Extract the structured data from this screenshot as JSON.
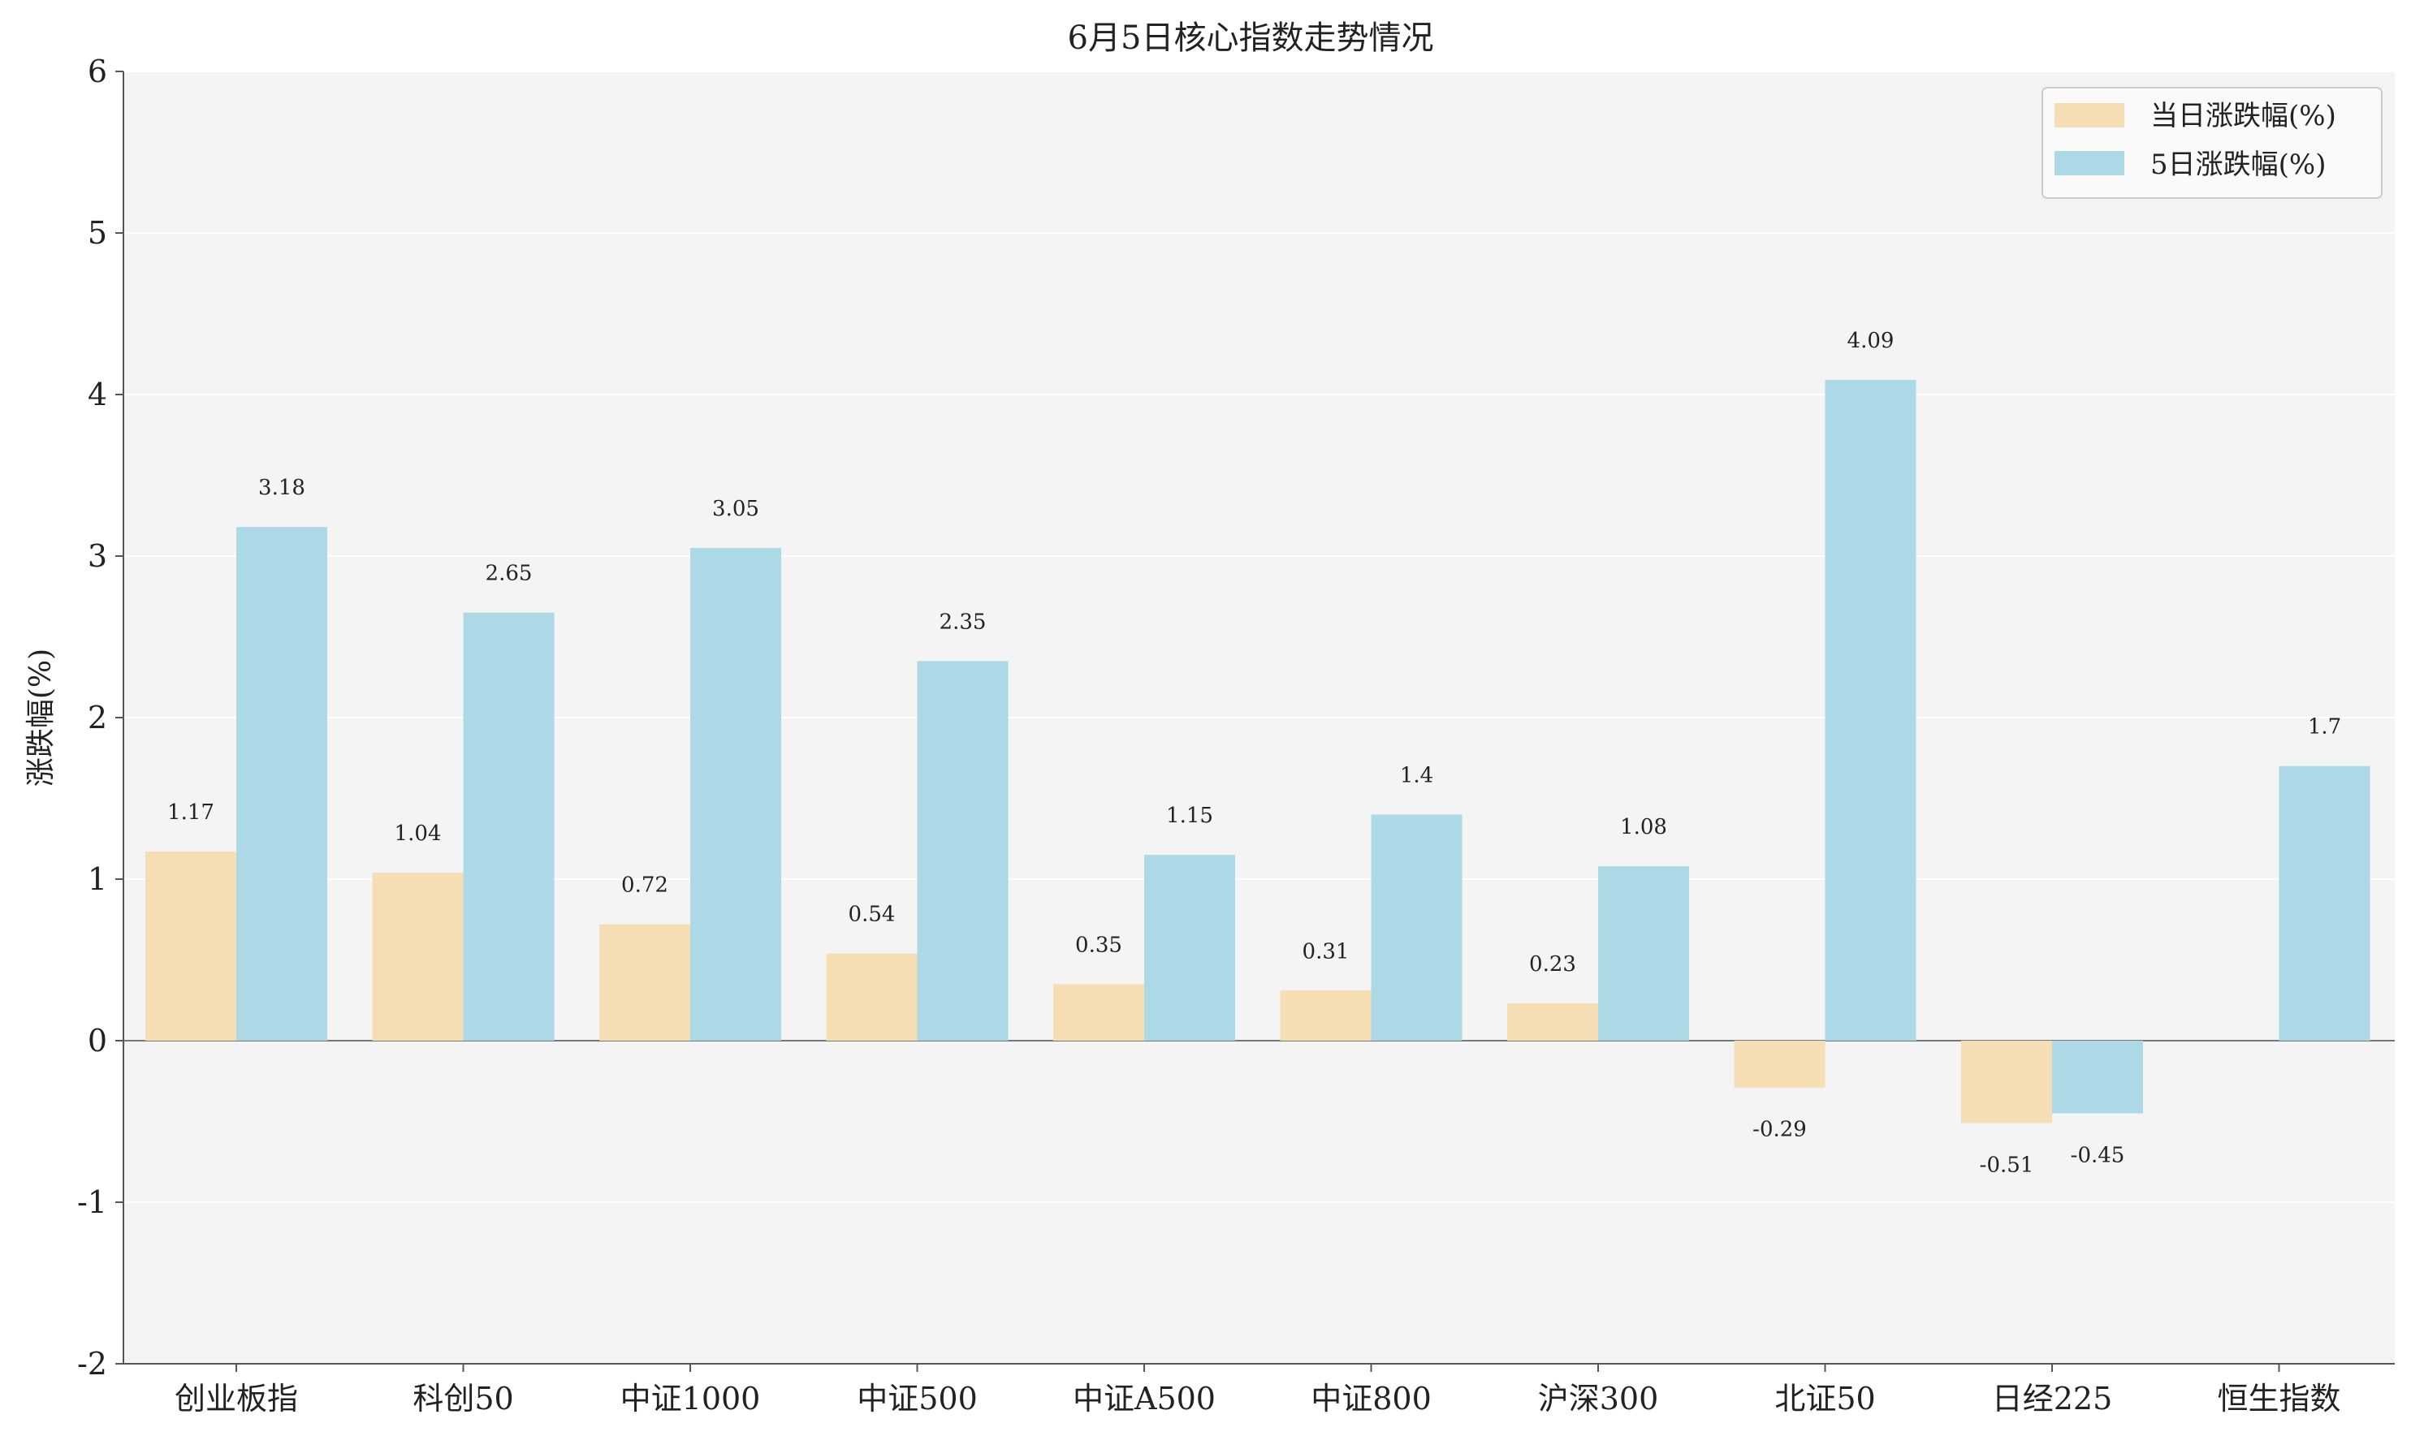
{
  "chart_data": {
    "type": "bar",
    "title": "6月5日核心指数走势情况",
    "xlabel": "",
    "ylabel": "涨跌幅(%)",
    "ylim": [
      -2,
      6
    ],
    "yticks": [
      -2,
      -1,
      0,
      1,
      2,
      3,
      4,
      5,
      6
    ],
    "grid": true,
    "legend_position": "top-right",
    "categories": [
      "创业板指",
      "科创50",
      "中证1000",
      "中证500",
      "中证A500",
      "中证800",
      "沪深300",
      "北证50",
      "日经225",
      "恒生指数"
    ],
    "series": [
      {
        "name": "当日涨跌幅(%)",
        "color": "#f5deb3",
        "values": [
          1.17,
          1.04,
          0.72,
          0.54,
          0.35,
          0.31,
          0.23,
          -0.29,
          -0.51,
          null
        ],
        "labels": [
          "1.17",
          "1.04",
          "0.72",
          "0.54",
          "0.35",
          "0.31",
          "0.23",
          "-0.29",
          "-0.51",
          null
        ]
      },
      {
        "name": "5日涨跌幅(%)",
        "color": "#add8e6",
        "values": [
          3.18,
          2.65,
          3.05,
          2.35,
          1.15,
          1.4,
          1.08,
          4.09,
          -0.45,
          1.7
        ],
        "labels": [
          "3.18",
          "2.65",
          "3.05",
          "2.35",
          "1.15",
          "1.4",
          "1.08",
          "4.09",
          "-0.45",
          "1.7"
        ]
      }
    ],
    "colors": {
      "plot_background": "#f4f4f4",
      "axis": "#555555",
      "grid": "#ffffff"
    }
  }
}
